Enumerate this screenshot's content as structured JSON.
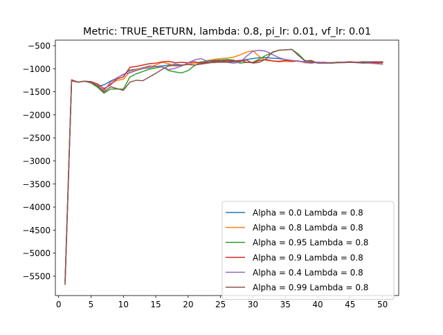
{
  "chart_data": {
    "type": "line",
    "title": "Metric: TRUE_RETURN, lambda: 0.8, pi_lr: 0.01, vf_lr: 0.01",
    "xlabel": "",
    "ylabel": "",
    "xlim": [
      -0.5,
      52.5
    ],
    "ylim": [
      -5920,
      -380
    ],
    "xticks": [
      0,
      5,
      10,
      15,
      20,
      25,
      30,
      35,
      40,
      45,
      50
    ],
    "yticks": [
      -5500,
      -5000,
      -4500,
      -4000,
      -3500,
      -3000,
      -2500,
      -2000,
      -1500,
      -1000,
      -500
    ],
    "legend_position": "lower right",
    "grid": false,
    "x": [
      1,
      2,
      3,
      4,
      5,
      6,
      7,
      8,
      9,
      10,
      11,
      12,
      13,
      14,
      15,
      16,
      17,
      18,
      19,
      20,
      21,
      22,
      23,
      24,
      25,
      26,
      27,
      28,
      29,
      30,
      31,
      32,
      33,
      34,
      35,
      36,
      37,
      38,
      39,
      40,
      41,
      42,
      43,
      44,
      45,
      46,
      47,
      48,
      49,
      50
    ],
    "series": [
      {
        "name": "Alpha = 0.0  Lambda = 0.8",
        "color": "#1f77b4",
        "values": [
          -5620,
          -1250,
          -1290,
          -1270,
          -1280,
          -1380,
          -1350,
          -1270,
          -1200,
          -1130,
          -1030,
          -1010,
          -980,
          -940,
          -950,
          -940,
          -920,
          -900,
          -920,
          -900,
          -880,
          -850,
          -850,
          -840,
          -830,
          -820,
          -830,
          -820,
          -800,
          -780,
          -760,
          -760,
          -770,
          -780,
          -800,
          -820,
          -840,
          -850,
          -860,
          -860,
          -870,
          -870,
          -860,
          -860,
          -850,
          -860,
          -850,
          -860,
          -860,
          -860
        ]
      },
      {
        "name": "Alpha = 0.8  Lambda = 0.8",
        "color": "#ff7f0e",
        "values": [
          -5600,
          -1260,
          -1290,
          -1270,
          -1300,
          -1400,
          -1450,
          -1330,
          -1250,
          -1230,
          -1060,
          -1020,
          -990,
          -960,
          -920,
          -860,
          -890,
          -940,
          -930,
          -900,
          -880,
          -860,
          -820,
          -800,
          -780,
          -770,
          -750,
          -700,
          -640,
          -610,
          -740,
          -820,
          -830,
          -850,
          -840,
          -850,
          -830,
          -870,
          -880,
          -860,
          -880,
          -870,
          -860,
          -860,
          -850,
          -860,
          -860,
          -860,
          -870,
          -870
        ]
      },
      {
        "name": "Alpha = 0.95  Lambda = 0.8",
        "color": "#2ca02c",
        "values": [
          -5650,
          -1260,
          -1290,
          -1270,
          -1310,
          -1400,
          -1530,
          -1440,
          -1440,
          -1440,
          -1180,
          -1110,
          -1060,
          -1010,
          -980,
          -960,
          -1040,
          -1070,
          -1090,
          -1040,
          -930,
          -860,
          -830,
          -820,
          -810,
          -800,
          -810,
          -880,
          -860,
          -860,
          -790,
          -710,
          -650,
          -600,
          -590,
          -580,
          -680,
          -820,
          -840,
          -870,
          -880,
          -870,
          -860,
          -860,
          -860,
          -860,
          -850,
          -850,
          -850,
          -850
        ]
      },
      {
        "name": "Alpha = 0.9  Lambda = 0.8",
        "color": "#d62728",
        "values": [
          -5600,
          -1240,
          -1290,
          -1270,
          -1280,
          -1330,
          -1430,
          -1350,
          -1220,
          -1180,
          -970,
          -950,
          -920,
          -890,
          -880,
          -850,
          -840,
          -870,
          -860,
          -870,
          -850,
          -880,
          -860,
          -830,
          -840,
          -830,
          -840,
          -820,
          -860,
          -870,
          -820,
          -800,
          -830,
          -840,
          -820,
          -830,
          -830,
          -860,
          -860,
          -870,
          -860,
          -880,
          -870,
          -860,
          -850,
          -860,
          -860,
          -860,
          -870,
          -870
        ]
      },
      {
        "name": "Alpha = 0.4  Lambda = 0.8",
        "color": "#9467bd",
        "values": [
          -5600,
          -1260,
          -1290,
          -1270,
          -1300,
          -1360,
          -1480,
          -1290,
          -1200,
          -1120,
          -1090,
          -1040,
          -1000,
          -980,
          -950,
          -960,
          -1020,
          -990,
          -940,
          -870,
          -810,
          -780,
          -840,
          -870,
          -850,
          -860,
          -880,
          -860,
          -730,
          -620,
          -600,
          -620,
          -690,
          -760,
          -800,
          -820,
          -830,
          -860,
          -880,
          -860,
          -860,
          -870,
          -870,
          -870,
          -860,
          -870,
          -880,
          -880,
          -890,
          -900
        ]
      },
      {
        "name": "Alpha = 0.99  Lambda = 0.8",
        "color": "#8c564b",
        "values": [
          -5680,
          -1260,
          -1290,
          -1270,
          -1290,
          -1370,
          -1510,
          -1390,
          -1430,
          -1470,
          -1290,
          -1250,
          -1260,
          -1180,
          -1100,
          -1010,
          -940,
          -930,
          -920,
          -910,
          -920,
          -900,
          -880,
          -860,
          -860,
          -860,
          -850,
          -840,
          -810,
          -880,
          -860,
          -790,
          -640,
          -600,
          -590,
          -580,
          -710,
          -830,
          -820,
          -880,
          -880,
          -880,
          -870,
          -860,
          -860,
          -860,
          -870,
          -850,
          -850,
          -850
        ]
      }
    ]
  }
}
